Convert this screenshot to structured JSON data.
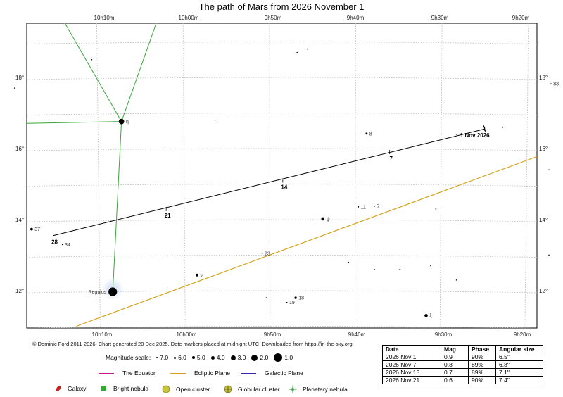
{
  "title": "The path of Mars from 2026 November 1",
  "chart_data": {
    "type": "scatter",
    "title": "The path of Mars from 2026 November 1",
    "ra_ticks_top": [
      "10h10m",
      "10h00m",
      "9h50m",
      "9h40m",
      "9h30m",
      "9h20m"
    ],
    "ra_ticks_bottom": [
      "10h10m",
      "10h00m",
      "9h50m",
      "9h40m",
      "9h30m",
      "9h20m"
    ],
    "dec_ticks": [
      "18°",
      "16°",
      "14°",
      "12°"
    ],
    "ra_range": [
      "10h20m",
      "9h18m"
    ],
    "dec_range": [
      11,
      19.5
    ],
    "grid": true,
    "mars_path": [
      {
        "label": "1 Nov 2026",
        "ra_h": 9.415,
        "dec": 16.55
      },
      {
        "label": "7",
        "ra_h": 9.6,
        "dec": 15.9
      },
      {
        "label": "14",
        "ra_h": 9.808,
        "dec": 15.1
      },
      {
        "label": "21",
        "ra_h": 10.035,
        "dec": 14.3
      },
      {
        "label": "28",
        "ra_h": 10.255,
        "dec": 13.55
      }
    ],
    "stars": [
      {
        "name": "η",
        "ra_h": 10.122,
        "dec": 16.76,
        "mag": 3.5
      },
      {
        "name": "Regulus",
        "ra_h": 10.139,
        "dec": 11.97,
        "mag": 1.4
      },
      {
        "name": "ψ",
        "ra_h": 9.73,
        "dec": 14.02,
        "mag": 5.0
      },
      {
        "name": "ξ",
        "ra_h": 9.529,
        "dec": 11.3,
        "mag": 5.0
      },
      {
        "name": "ν",
        "ra_h": 9.975,
        "dec": 12.44,
        "mag": 5.3
      },
      {
        "name": "8",
        "ra_h": 9.645,
        "dec": 16.42,
        "mag": 5.8
      },
      {
        "name": "7",
        "ra_h": 9.63,
        "dec": 14.38,
        "mag": 6.2
      },
      {
        "name": "11",
        "ra_h": 9.661,
        "dec": 14.36,
        "mag": 6.3
      },
      {
        "name": "23",
        "ra_h": 9.848,
        "dec": 13.05,
        "mag": 6.4
      },
      {
        "name": "37",
        "ra_h": 10.297,
        "dec": 13.73,
        "mag": 5.4
      },
      {
        "name": "34",
        "ra_h": 10.237,
        "dec": 13.3,
        "mag": 6.4
      },
      {
        "name": "18",
        "ra_h": 9.783,
        "dec": 11.8,
        "mag": 5.6
      },
      {
        "name": "19",
        "ra_h": 9.8,
        "dec": 11.67,
        "mag": 6.5
      },
      {
        "name": "83",
        "ra_h": 9.286,
        "dec": 17.82,
        "mag": 6.6
      }
    ],
    "constellation_lines": [
      {
        "from": [
          10.275,
          20.6
        ],
        "to": [
          10.122,
          16.76
        ]
      },
      {
        "from": [
          10.05,
          19.7
        ],
        "to": [
          10.122,
          16.76
        ]
      },
      {
        "from": [
          10.33,
          16.7
        ],
        "to": [
          10.122,
          16.76
        ]
      },
      {
        "from": [
          10.122,
          16.76
        ],
        "to": [
          10.139,
          11.97
        ]
      }
    ],
    "ecliptic": {
      "from": [
        10.21,
        11.0
      ],
      "to": [
        9.28,
        15.95
      ]
    },
    "magnitude_scale": [
      "7.0",
      "6.0",
      "5.0",
      "4.0",
      "3.0",
      "2.0",
      "1.0"
    ]
  },
  "credit": "© Dominic Ford 2011-2026. Chart generated 20 Dec 2025. Date markers placed at midnight UTC. Downloaded from https://in-the-sky.org",
  "magnitude_scale_label": "Magnitude scale:",
  "legend": {
    "equator": "The Equator",
    "ecliptic": "Ecliptic Plane",
    "galactic": "Galactic Plane",
    "galaxy": "Galaxy",
    "bright_nebula": "Bright nebula",
    "open_cluster": "Open cluster",
    "globular_cluster": "Globular cluster",
    "planetary_nebula": "Planetary nebula"
  },
  "colors": {
    "equator": "#c2197d",
    "ecliptic": "#d4a017",
    "galactic": "#3a28a8",
    "constellation": "#3aa63a",
    "grid": "#bbbbbb"
  },
  "table": {
    "headers": [
      "Date",
      "Mag",
      "Phase",
      "Angular size"
    ],
    "rows": [
      [
        "2026 Nov 1",
        "0.9",
        "90%",
        "6.5\""
      ],
      [
        "2026 Nov 7",
        "0.8",
        "89%",
        "6.8\""
      ],
      [
        "2026 Nov 15",
        "0.7",
        "89%",
        "7.1\""
      ],
      [
        "2026 Nov 21",
        "0.6",
        "90%",
        "7.4\""
      ]
    ]
  }
}
